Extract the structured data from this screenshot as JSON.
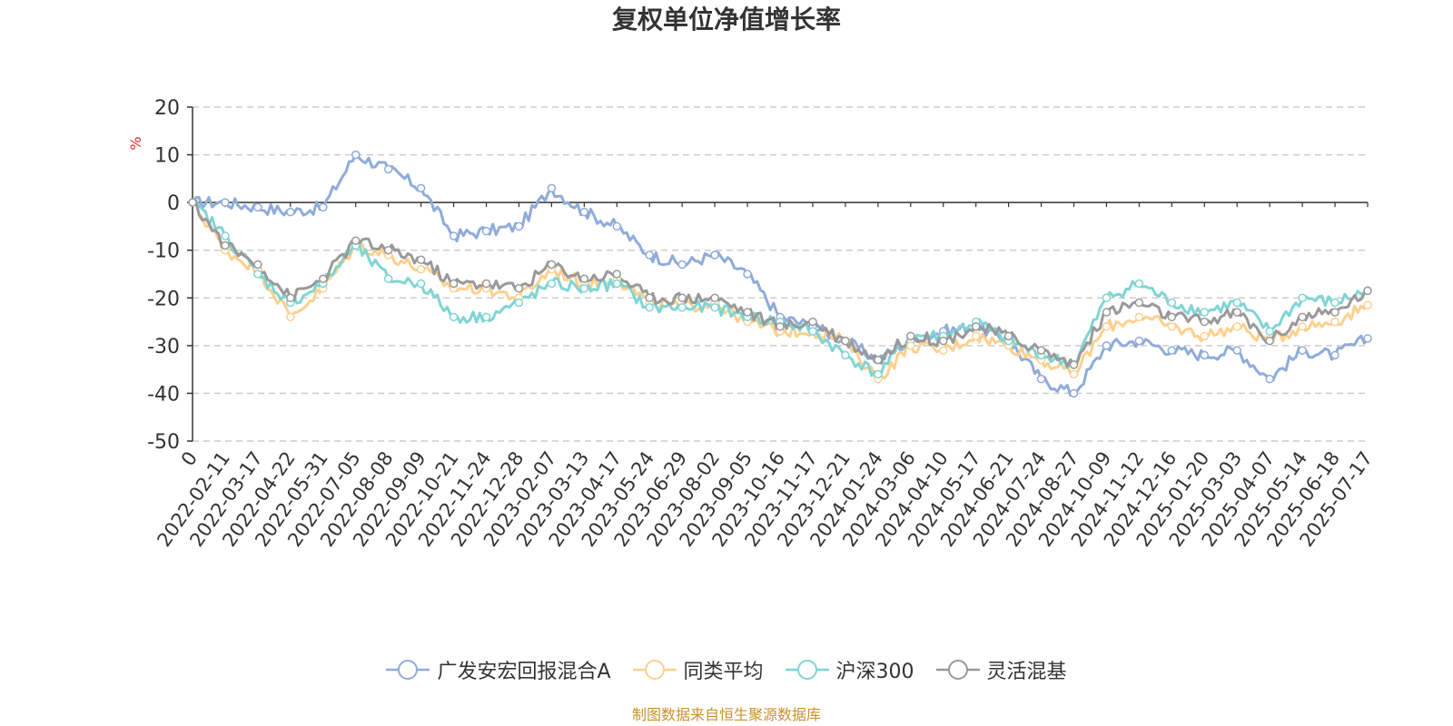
{
  "chart_data": {
    "type": "line",
    "title": "复权单位净值增长率",
    "ylabel": "%",
    "ylim": [
      -50,
      20
    ],
    "yticks": [
      20,
      10,
      0,
      -10,
      -20,
      -30,
      -40,
      -50
    ],
    "grid": true,
    "legend_position": "bottom",
    "x": [
      "0",
      "2022-02-11",
      "2022-03-17",
      "2022-04-22",
      "2022-05-31",
      "2022-07-05",
      "2022-08-08",
      "2022-09-09",
      "2022-10-21",
      "2022-11-24",
      "2022-12-28",
      "2023-02-07",
      "2023-03-13",
      "2023-04-17",
      "2023-05-24",
      "2023-06-29",
      "2023-08-02",
      "2023-09-05",
      "2023-10-16",
      "2023-11-17",
      "2023-12-21",
      "2024-01-24",
      "2024-03-06",
      "2024-04-10",
      "2024-05-17",
      "2024-06-21",
      "2024-07-24",
      "2024-08-27",
      "2024-10-09",
      "2024-11-12",
      "2024-12-16",
      "2025-01-20",
      "2025-03-03",
      "2025-04-07",
      "2025-05-14",
      "2025-06-18",
      "2025-07-17"
    ],
    "series": [
      {
        "name": "广发安宏回报混合A",
        "color": "#8fabd9",
        "values": [
          0,
          0,
          -1,
          -2,
          -1,
          10,
          7,
          3,
          -7,
          -6,
          -5,
          3,
          -2,
          -5,
          -11,
          -13,
          -11,
          -15,
          -24,
          -26,
          -29,
          -33,
          -29,
          -27,
          -26,
          -29,
          -37,
          -40,
          -30,
          -29,
          -31,
          -32,
          -31,
          -37,
          -31,
          -32,
          -28.5
        ]
      },
      {
        "name": "同类平均",
        "color": "#fcd08e",
        "values": [
          0,
          -10,
          -14,
          -24,
          -18,
          -9,
          -11,
          -14,
          -18,
          -18,
          -20,
          -14,
          -17,
          -16,
          -21,
          -22,
          -21,
          -25,
          -27,
          -27,
          -29,
          -37,
          -30,
          -31,
          -28,
          -30,
          -33,
          -36,
          -26,
          -24,
          -26,
          -28,
          -26,
          -29,
          -26,
          -25,
          -21.5
        ]
      },
      {
        "name": "沪深300",
        "color": "#80d4d4",
        "values": [
          0,
          -7,
          -15,
          -21,
          -17,
          -9,
          -16,
          -17,
          -24,
          -24,
          -21,
          -17,
          -18,
          -17,
          -22,
          -22,
          -22,
          -24,
          -25,
          -27,
          -32,
          -36,
          -28,
          -28,
          -25,
          -29,
          -32,
          -34,
          -20,
          -17,
          -21,
          -23,
          -21,
          -27,
          -20,
          -21,
          -18.5
        ]
      },
      {
        "name": "灵活混基",
        "color": "#999999",
        "values": [
          0,
          -9,
          -13,
          -20,
          -16,
          -8,
          -10,
          -12,
          -17,
          -17,
          -18,
          -13,
          -16,
          -15,
          -20,
          -20,
          -20,
          -23,
          -26,
          -25,
          -29,
          -33,
          -28,
          -29,
          -26,
          -28,
          -31,
          -34,
          -23,
          -21,
          -24,
          -25,
          -23,
          -29,
          -24,
          -23,
          -18.5
        ]
      }
    ]
  },
  "legend": {
    "items": [
      {
        "label": "广发安宏回报混合A",
        "color": "#8fabd9"
      },
      {
        "label": "同类平均",
        "color": "#fcd08e"
      },
      {
        "label": "沪深300",
        "color": "#80d4d4"
      },
      {
        "label": "灵活混基",
        "color": "#999999"
      }
    ]
  },
  "source_note": "制图数据来自恒生聚源数据库",
  "colors": {
    "axis_label": "#333333",
    "ylabel": "#e8262a",
    "source": "#c8922c",
    "grid": "#cccccc"
  }
}
